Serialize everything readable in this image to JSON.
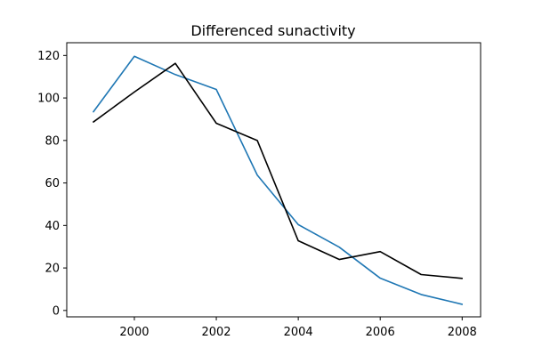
{
  "chart_data": {
    "type": "line",
    "title": "Differenced sunactivity",
    "xlabel": "",
    "ylabel": "",
    "x": [
      1999,
      2000,
      2001,
      2002,
      2003,
      2004,
      2005,
      2006,
      2007,
      2008
    ],
    "xlim": [
      1998.35,
      2008.45
    ],
    "ylim": [
      -3,
      126
    ],
    "xticks": [
      2000,
      2002,
      2004,
      2006,
      2008
    ],
    "yticks": [
      0,
      20,
      40,
      60,
      80,
      100,
      120
    ],
    "grid": false,
    "series": [
      {
        "color": "#1f77b4",
        "values": [
          93.5,
          119.6,
          111.0,
          104.0,
          63.7,
          40.4,
          29.8,
          15.2,
          7.5,
          2.9
        ]
      },
      {
        "color": "#000000",
        "values": [
          88.7,
          102.8,
          116.3,
          88.1,
          80.0,
          32.8,
          24.0,
          27.7,
          16.9,
          15.1
        ]
      }
    ]
  }
}
